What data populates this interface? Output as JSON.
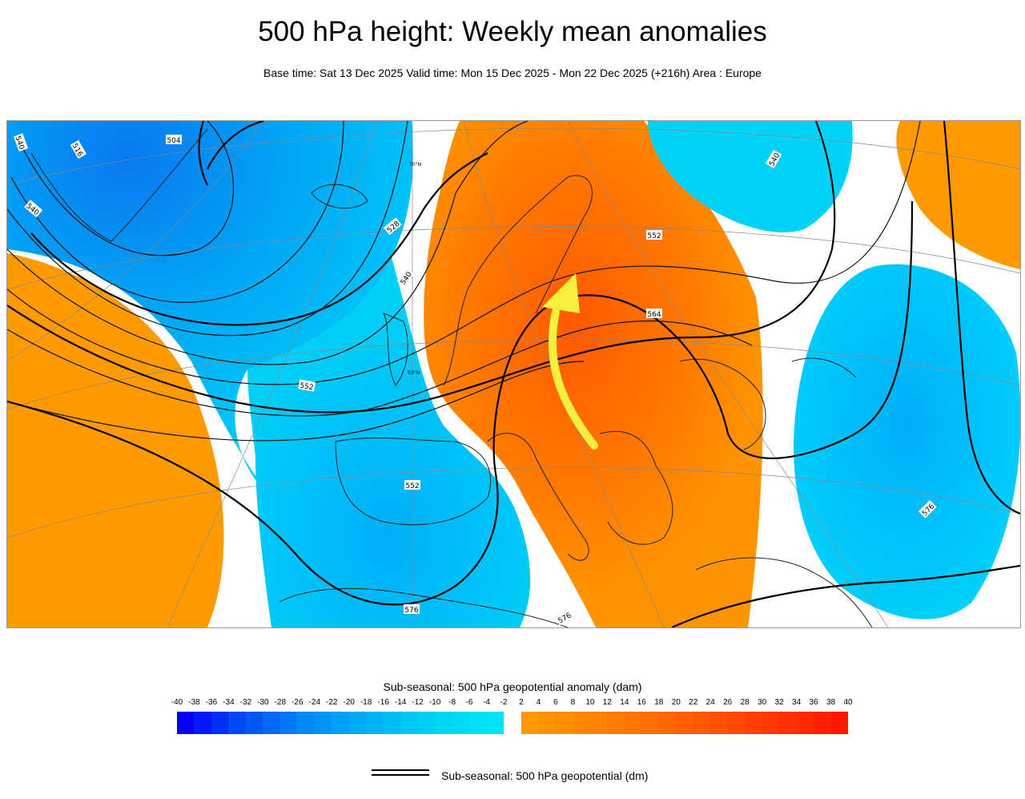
{
  "title": "500 hPa height: Weekly mean anomalies",
  "subtitle": "Base time: Sat 13 Dec 2025 Valid time: Mon 15 Dec 2025 - Mon 22 Dec 2025 (+216h) Area : Europe",
  "colorbar": {
    "title": "Sub-seasonal: 500 hPa geopotential anomaly (dam)",
    "ticks": [
      "-40",
      "-38",
      "-36",
      "-34",
      "-32",
      "-30",
      "-28",
      "-26",
      "-24",
      "-22",
      "-20",
      "-18",
      "-16",
      "-14",
      "-12",
      "-10",
      "-8",
      "-6",
      "-4",
      "-2",
      "2",
      "4",
      "6",
      "8",
      "10",
      "12",
      "14",
      "16",
      "18",
      "20",
      "22",
      "24",
      "26",
      "28",
      "30",
      "32",
      "34",
      "36",
      "38",
      "40"
    ],
    "negative_colors": [
      "#0a00f5",
      "#0418f5",
      "#0030f5",
      "#0048f5",
      "#0058f5",
      "#0068f5",
      "#0078f5",
      "#0088f5",
      "#0094f5",
      "#00a0f5",
      "#00abf5",
      "#00b4f5",
      "#00bdf5",
      "#00c6f5",
      "#00cef5",
      "#00d5f5",
      "#00dbf5",
      "#00e0f5",
      "#00e5f5"
    ],
    "positive_colors": [
      "#ff9900",
      "#ff9400",
      "#ff8f00",
      "#ff8800",
      "#ff8200",
      "#ff7c00",
      "#ff7500",
      "#ff6e00",
      "#ff6600",
      "#ff5f00",
      "#ff5800",
      "#ff5000",
      "#ff4800",
      "#ff4000",
      "#ff3800",
      "#ff3000",
      "#ff2800",
      "#ff2000",
      "#ff1800"
    ]
  },
  "legend": {
    "contour_label": "Sub-seasonal: 500 hPa geopotential (dm)"
  },
  "map": {
    "area": "Europe",
    "contour_labels": [
      "504",
      "516",
      "540",
      "528",
      "552",
      "540",
      "552",
      "564",
      "576",
      "540",
      "540",
      "552",
      "576",
      "576"
    ],
    "lat_labels": [
      "70°N",
      "50°N"
    ],
    "anomaly_colors": {
      "positive_weak": "#ffa000",
      "positive_strong": "#ff6a00",
      "negative_weak": "#00ccff",
      "negative_strong": "#00a8f8"
    },
    "annotation": {
      "type": "arrow",
      "color": "#f5f040",
      "icon": "curved-arrow-icon"
    }
  }
}
